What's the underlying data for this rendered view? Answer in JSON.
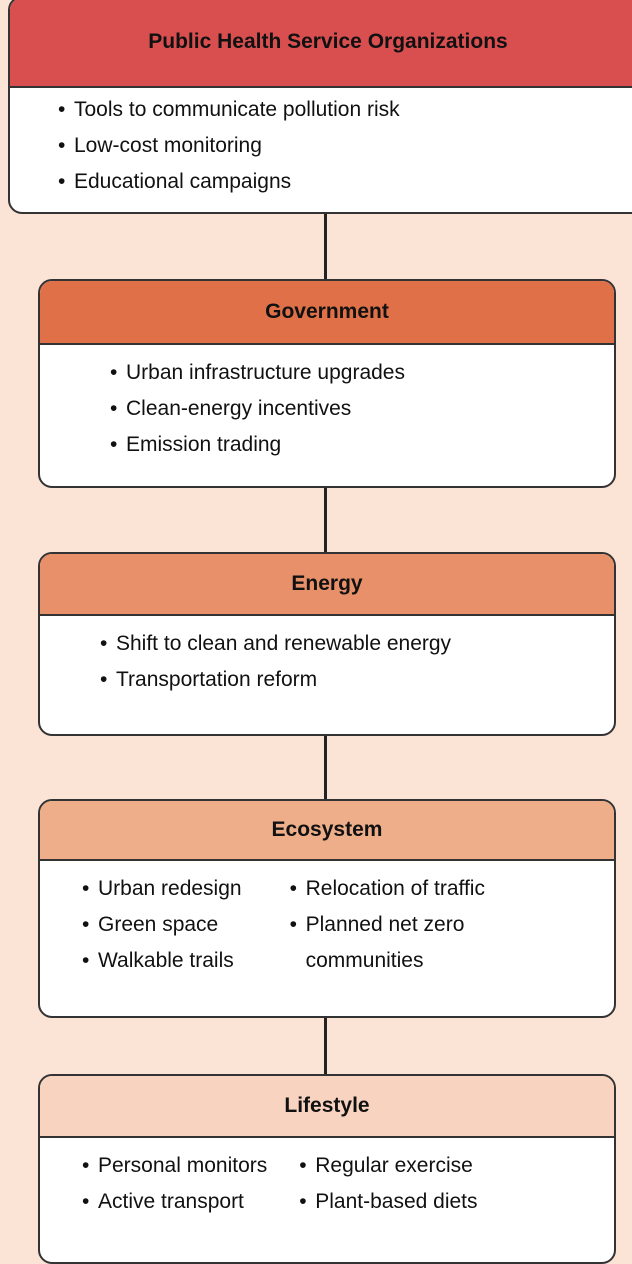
{
  "nodes": [
    {
      "title": "Public Health Service Organizations",
      "columns": [
        [
          "Tools to communicate pollution risk",
          "Low-cost monitoring",
          "Educational campaigns"
        ]
      ]
    },
    {
      "title": "Government",
      "columns": [
        [
          "Urban infrastructure upgrades",
          "Clean-energy incentives",
          "Emission trading"
        ]
      ]
    },
    {
      "title": "Energy",
      "columns": [
        [
          "Shift to clean and renewable energy",
          "Transportation reform"
        ]
      ]
    },
    {
      "title": "Ecosystem",
      "columns": [
        [
          "Urban redesign",
          "Green space",
          "Walkable trails"
        ],
        [
          "Relocation of traffic",
          "Planned net zero communities"
        ]
      ]
    },
    {
      "title": "Lifestyle",
      "columns": [
        [
          "Personal monitors",
          "Active transport"
        ],
        [
          "Regular exercise",
          "Plant-based diets"
        ]
      ]
    }
  ]
}
